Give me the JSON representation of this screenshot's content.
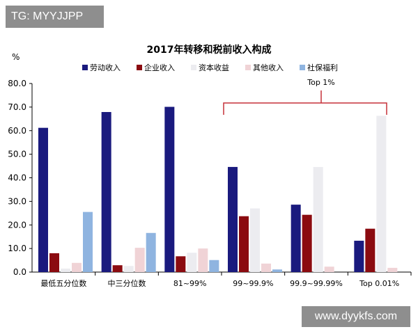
{
  "corner_tag": "TG: MYYJJPP",
  "watermark": "www.dyykfs.com",
  "colors": {
    "labor": "#1a1a7e",
    "business": "#8b0b10",
    "capital": "#ececf0",
    "other": "#f0d3d6",
    "social": "#8fb4e0",
    "bracket": "#c53038",
    "axis": "#000000"
  },
  "chart_data": {
    "type": "bar",
    "title": "2017年转移和税前收入构成",
    "ylabel": "%",
    "xlabel": "",
    "ylim": [
      0,
      80
    ],
    "yticks": [
      "0.0",
      "10.0",
      "20.0",
      "30.0",
      "40.0",
      "50.0",
      "60.0",
      "70.0",
      "80.0"
    ],
    "grid": false,
    "legend_position": "top",
    "categories": [
      "最低五分位数",
      "中三分位数",
      "81~99%",
      "99~99.9%",
      "99.9~99.99%",
      "Top 0.01%"
    ],
    "series": [
      {
        "name": "劳动收入",
        "values": [
          61.2,
          67.9,
          70.1,
          44.6,
          28.6,
          13.3
        ]
      },
      {
        "name": "企业收入",
        "values": [
          8.0,
          2.9,
          6.7,
          23.7,
          24.3,
          18.4
        ]
      },
      {
        "name": "资本收益",
        "values": [
          1.5,
          2.6,
          8.2,
          27.0,
          44.6,
          66.3
        ]
      },
      {
        "name": "其他收入",
        "values": [
          3.9,
          10.3,
          10.0,
          3.6,
          2.3,
          1.8
        ]
      },
      {
        "name": "社保福利",
        "values": [
          25.5,
          16.6,
          5.1,
          1.1,
          0,
          0
        ]
      }
    ],
    "annotation": {
      "label": "Top 1%",
      "span_categories": [
        3,
        5
      ]
    }
  }
}
